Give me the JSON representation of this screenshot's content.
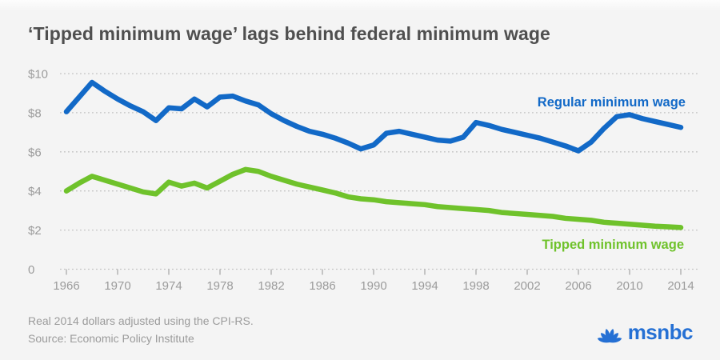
{
  "header": {
    "title": "‘Tipped minimum wage’ lags behind federal minimum wage"
  },
  "chart_data": {
    "type": "line",
    "title": "‘Tipped minimum wage’ lags behind federal minimum wage",
    "xlabel": "",
    "ylabel": "",
    "xlim": [
      1966,
      2014
    ],
    "ylim": [
      0,
      10
    ],
    "grid": "dotted horizontal gridlines",
    "legend_position": "inline labels at right of lines",
    "y_ticks": [
      10,
      8,
      6,
      4,
      2,
      0
    ],
    "y_tick_labels": [
      "$10",
      "$8",
      "$6",
      "$4",
      "$2",
      "0"
    ],
    "x_ticks": [
      1966,
      1970,
      1974,
      1978,
      1982,
      1986,
      1990,
      1994,
      1998,
      2002,
      2006,
      2010,
      2014
    ],
    "x_tick_labels": [
      "1966",
      "1970",
      "1974",
      "1978",
      "1982",
      "1986",
      "1990",
      "1994",
      "1998",
      "2002",
      "2006",
      "2010",
      "2014"
    ],
    "x": [
      1966,
      1967,
      1968,
      1969,
      1970,
      1971,
      1972,
      1973,
      1974,
      1975,
      1976,
      1977,
      1978,
      1979,
      1980,
      1981,
      1982,
      1983,
      1984,
      1985,
      1986,
      1987,
      1988,
      1989,
      1990,
      1991,
      1992,
      1993,
      1994,
      1995,
      1996,
      1997,
      1998,
      1999,
      2000,
      2001,
      2002,
      2003,
      2004,
      2005,
      2006,
      2007,
      2008,
      2009,
      2010,
      2011,
      2012,
      2013,
      2014
    ],
    "series": [
      {
        "name": "Regular minimum wage",
        "color": "#1269c7",
        "values": [
          8.05,
          8.8,
          9.55,
          9.1,
          8.7,
          8.35,
          8.05,
          7.6,
          8.25,
          8.2,
          8.7,
          8.3,
          8.8,
          8.85,
          8.6,
          8.4,
          7.95,
          7.6,
          7.3,
          7.05,
          6.9,
          6.7,
          6.45,
          6.15,
          6.35,
          6.95,
          7.05,
          6.9,
          6.75,
          6.6,
          6.55,
          6.75,
          7.5,
          7.35,
          7.15,
          7.0,
          6.85,
          6.7,
          6.5,
          6.3,
          6.05,
          6.5,
          7.2,
          7.8,
          7.9,
          7.7,
          7.55,
          7.4,
          7.25
        ]
      },
      {
        "name": "Tipped minimum wage",
        "color": "#6fc22b",
        "values": [
          4.0,
          4.4,
          4.75,
          4.55,
          4.35,
          4.15,
          3.95,
          3.85,
          4.45,
          4.25,
          4.4,
          4.15,
          4.5,
          4.85,
          5.1,
          5.0,
          4.75,
          4.55,
          4.35,
          4.2,
          4.05,
          3.9,
          3.7,
          3.6,
          3.55,
          3.45,
          3.4,
          3.35,
          3.3,
          3.2,
          3.15,
          3.1,
          3.05,
          3.0,
          2.9,
          2.85,
          2.8,
          2.75,
          2.7,
          2.6,
          2.55,
          2.5,
          2.4,
          2.35,
          2.3,
          2.25,
          2.2,
          2.17,
          2.13
        ]
      }
    ]
  },
  "footer": {
    "note": "Real 2014 dollars adjusted using the CPI-RS.",
    "source": "Source: Economic Policy Institute"
  },
  "branding": {
    "wordmark": "msnbc",
    "logo_icon": "nbc-peacock-icon",
    "color": "#2570d4"
  },
  "colors": {
    "background": "#f4f4f4",
    "title_text": "#4f4f4f",
    "axis_text": "#9b9b9b",
    "gridline": "#c2c2c2",
    "regular_line": "#1269c7",
    "tipped_line": "#6fc22b",
    "brand_blue": "#2570d4"
  }
}
